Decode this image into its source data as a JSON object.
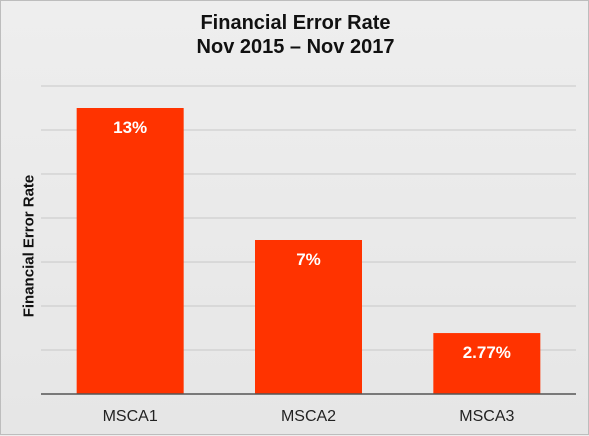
{
  "chart_data": {
    "type": "bar",
    "title": [
      "Financial Error Rate",
      "Nov 2015 – Nov 2017"
    ],
    "ylabel": "Financial Error Rate",
    "xlabel": "",
    "categories": [
      "MSCA1",
      "MSCA2",
      "MSCA3"
    ],
    "values": [
      13,
      7,
      2.77
    ],
    "data_labels": [
      "13%",
      "7%",
      "2.77%"
    ],
    "ylim": [
      0,
      14
    ],
    "gridlines": [
      2,
      4,
      6,
      8,
      10,
      12,
      14
    ],
    "grid": true,
    "legend": "none",
    "bar_color": "#ff3300"
  }
}
